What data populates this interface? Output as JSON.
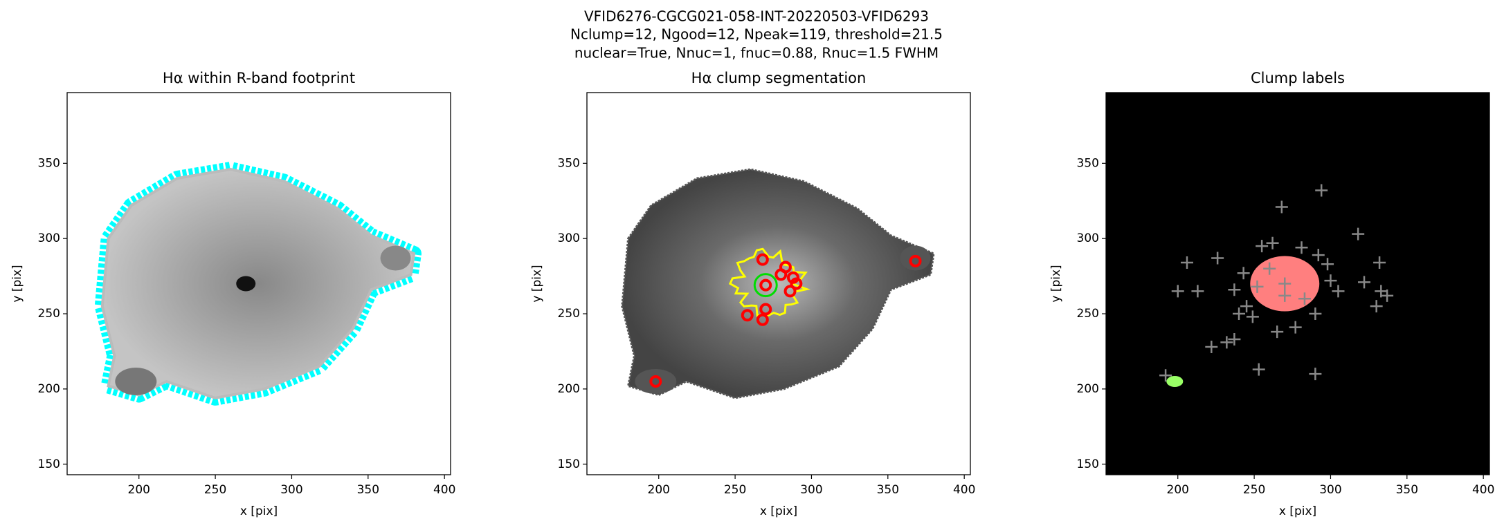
{
  "suptitle": [
    "VFID6276-CGCG021-058-INT-20220503-VFID6293",
    "Nclump=12, Ngood=12, Npeak=119, threshold=21.5",
    "nuclear=True, Nnuc=1, fnuc=0.88, Rnuc=1.5 FWHM"
  ],
  "chart_data": [
    {
      "type": "image",
      "title": "Hα within R-band footprint",
      "xlabel": "x [pix]",
      "ylabel": "y [pix]",
      "xlim": [
        153,
        404
      ],
      "ylim": [
        143,
        397
      ],
      "xticks": [
        200,
        250,
        300,
        350,
        400
      ],
      "yticks": [
        150,
        200,
        250,
        300,
        350
      ]
    },
    {
      "type": "image",
      "title": "Hα clump segmentation",
      "xlabel": "x [pix]",
      "ylabel": "y [pix]",
      "xlim": [
        153,
        404
      ],
      "ylim": [
        143,
        397
      ],
      "xticks": [
        200,
        250,
        300,
        350,
        400
      ],
      "yticks": [
        150,
        200,
        250,
        300,
        350
      ],
      "clumps": {
        "color": "#ff0000",
        "x": [
          198,
          368,
          268,
          283,
          288,
          286,
          290,
          258,
          268,
          270,
          270,
          280
        ],
        "y": [
          205,
          285,
          286,
          281,
          274,
          265,
          270,
          249,
          246,
          253,
          269,
          276
        ]
      },
      "nucleus": {
        "color": "#00dd00",
        "x": [
          270
        ],
        "y": [
          269
        ]
      }
    },
    {
      "type": "image",
      "title": "Clump labels",
      "xlabel": "x [pix]",
      "ylabel": "y [pix]",
      "xlim": [
        153,
        404
      ],
      "ylim": [
        143,
        397
      ],
      "xticks": [
        200,
        250,
        300,
        350,
        400
      ],
      "yticks": [
        150,
        200,
        250,
        300,
        350
      ],
      "peaks": {
        "color": "#888888",
        "x": [
          268,
          294,
          318,
          206,
          226,
          200,
          213,
          322,
          332,
          333,
          337,
          330,
          222,
          232,
          237,
          253,
          290,
          192,
          249,
          245,
          255,
          262,
          281,
          292,
          298,
          243,
          237,
          240,
          300,
          305,
          265,
          277,
          270,
          260,
          283,
          252,
          290,
          270
        ],
        "y": [
          321,
          332,
          303,
          284,
          287,
          265,
          265,
          271,
          284,
          265,
          262,
          255,
          228,
          231,
          233,
          213,
          210,
          209,
          248,
          255,
          295,
          297,
          294,
          289,
          283,
          277,
          266,
          250,
          272,
          265,
          238,
          241,
          270,
          280,
          260,
          268,
          250,
          262
        ]
      }
    }
  ]
}
